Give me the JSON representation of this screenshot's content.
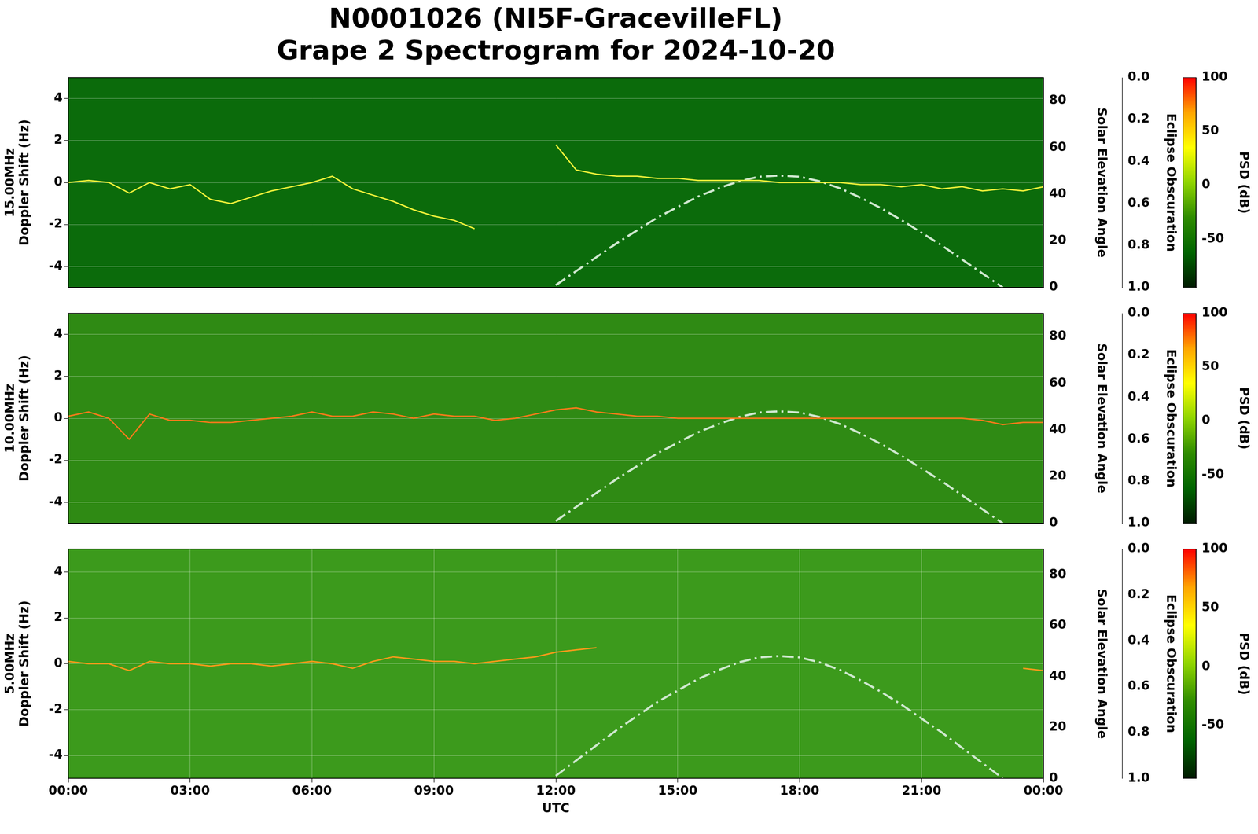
{
  "title": "N0001026 (NI5F-GracevilleFL)\nGrape 2 Spectrogram for 2024-10-20",
  "chart_data": [
    {
      "type": "line",
      "ylabel": "15.00MHz\nDoppler Shift (Hz)",
      "y2label": "Solar Elevation Angle",
      "y3label": "Eclipse Obscuration",
      "xlim": [
        0,
        24
      ],
      "ylim": [
        -5,
        5
      ],
      "yticks": [
        -4,
        -2,
        0,
        2,
        4
      ],
      "y2lim": [
        0,
        90
      ],
      "y2ticks": [
        0,
        20,
        40,
        60,
        80
      ],
      "y3lim": [
        1,
        0
      ],
      "y3ticks": [
        {
          "value": 0,
          "label": "0.0"
        },
        0.2,
        0.4,
        0.6,
        0.8,
        {
          "value": 1,
          "label": "1.0"
        }
      ],
      "grid": true,
      "colorbar": {
        "label": "PSD (dB)",
        "range": [
          -95,
          100
        ],
        "ticks": [
          -50,
          0,
          50,
          100
        ],
        "colors": [
          "#001a00",
          "#006400",
          "#2e8b00",
          "#8fd400",
          "#ffff00",
          "#ffa500",
          "#ff0000"
        ]
      },
      "x": [
        0,
        0.5,
        1,
        1.5,
        2,
        2.5,
        3,
        3.5,
        4,
        4.5,
        5,
        5.5,
        6,
        6.5,
        7,
        7.5,
        8,
        8.5,
        9,
        9.5,
        10,
        10.5,
        11,
        11.5,
        12,
        12.5,
        13,
        13.5,
        14,
        14.5,
        15,
        15.5,
        16,
        16.5,
        17,
        17.5,
        18,
        18.5,
        19,
        19.5,
        20,
        20.5,
        21,
        21.5,
        22,
        22.5,
        23,
        23.5,
        24
      ],
      "series": [
        {
          "color": "#f2f23a",
          "values": [
            0,
            0.1,
            0,
            -0.5,
            0,
            -0.3,
            -0.1,
            -0.8,
            -1,
            -0.7,
            -0.4,
            -0.2,
            0,
            0.3,
            -0.3,
            -0.6,
            -0.9,
            -1.3,
            -1.6,
            -1.8,
            -2.2,
            null,
            null,
            null,
            1.8,
            0.6,
            0.4,
            0.3,
            0.3,
            0.2,
            0.2,
            0.1,
            0.1,
            0.1,
            0.1,
            0,
            0,
            0,
            0,
            -0.1,
            -0.1,
            -0.2,
            -0.1,
            -0.3,
            -0.2,
            -0.4,
            -0.3,
            -0.4,
            -0.2
          ]
        },
        {
          "color": "#cfe8cf",
          "line_style": "dashdot",
          "axis": "y2",
          "values": [
            null,
            null,
            null,
            null,
            null,
            null,
            null,
            null,
            null,
            null,
            null,
            null,
            null,
            null,
            null,
            null,
            null,
            null,
            null,
            null,
            null,
            null,
            null,
            null,
            1,
            7,
            13,
            19,
            24.5,
            30,
            34.5,
            39,
            42.5,
            45.5,
            47.5,
            48,
            47.5,
            45.5,
            42.5,
            38.5,
            34,
            29,
            23.5,
            18,
            12,
            6,
            0,
            null,
            null
          ]
        }
      ]
    },
    {
      "type": "line",
      "ylabel": "10.00MHz\nDoppler Shift (Hz)",
      "y2label": "Solar Elevation Angle",
      "y3label": "Eclipse Obscuration",
      "xlim": [
        0,
        24
      ],
      "ylim": [
        -5,
        5
      ],
      "yticks": [
        -4,
        -2,
        0,
        2,
        4
      ],
      "y2lim": [
        0,
        90
      ],
      "y2ticks": [
        0,
        20,
        40,
        60,
        80
      ],
      "y3lim": [
        1,
        0
      ],
      "y3ticks": [
        {
          "value": 0,
          "label": "0.0"
        },
        0.2,
        0.4,
        0.6,
        0.8,
        {
          "value": 1,
          "label": "1.0"
        }
      ],
      "grid": true,
      "colorbar": {
        "label": "PSD (dB)",
        "range": [
          -95,
          100
        ],
        "ticks": [
          -50,
          0,
          50,
          100
        ],
        "colors": [
          "#001a00",
          "#006400",
          "#2e8b00",
          "#8fd400",
          "#ffff00",
          "#ffa500",
          "#ff0000"
        ]
      },
      "x": [
        0,
        0.5,
        1,
        1.5,
        2,
        2.5,
        3,
        3.5,
        4,
        4.5,
        5,
        5.5,
        6,
        6.5,
        7,
        7.5,
        8,
        8.5,
        9,
        9.5,
        10,
        10.5,
        11,
        11.5,
        12,
        12.5,
        13,
        13.5,
        14,
        14.5,
        15,
        15.5,
        16,
        16.5,
        17,
        17.5,
        18,
        18.5,
        19,
        19.5,
        20,
        20.5,
        21,
        21.5,
        22,
        22.5,
        23,
        23.5,
        24
      ],
      "series": [
        {
          "color": "#ff7a1a",
          "values": [
            0.1,
            0.3,
            0,
            -1.0,
            0.2,
            -0.1,
            -0.1,
            -0.2,
            -0.2,
            -0.1,
            0,
            0.1,
            0.3,
            0.1,
            0.1,
            0.3,
            0.2,
            0,
            0.2,
            0.1,
            0.1,
            -0.1,
            0,
            0.2,
            0.4,
            0.5,
            0.3,
            0.2,
            0.1,
            0.1,
            0,
            0,
            0,
            0,
            0,
            0,
            0,
            0,
            0,
            0,
            0,
            0,
            0,
            0,
            0,
            -0.1,
            -0.3,
            -0.2,
            -0.2
          ]
        },
        {
          "color": "#cfe8cf",
          "line_style": "dashdot",
          "axis": "y2",
          "values": [
            null,
            null,
            null,
            null,
            null,
            null,
            null,
            null,
            null,
            null,
            null,
            null,
            null,
            null,
            null,
            null,
            null,
            null,
            null,
            null,
            null,
            null,
            null,
            null,
            1,
            7,
            13,
            19,
            24.5,
            30,
            34.5,
            39,
            42.5,
            45.5,
            47.5,
            48,
            47.5,
            45.5,
            42.5,
            38.5,
            34,
            29,
            23.5,
            18,
            12,
            6,
            0,
            null,
            null
          ]
        }
      ]
    },
    {
      "type": "line",
      "ylabel": "5.00MHz\nDoppler Shift (Hz)",
      "y2label": "Solar Elevation Angle",
      "y3label": "Eclipse Obscuration",
      "xlabel": "UTC",
      "xlim": [
        0,
        24
      ],
      "xticks": [
        {
          "value": 0,
          "label": "00:00"
        },
        {
          "value": 3,
          "label": "03:00"
        },
        {
          "value": 6,
          "label": "06:00"
        },
        {
          "value": 9,
          "label": "09:00"
        },
        {
          "value": 12,
          "label": "12:00"
        },
        {
          "value": 15,
          "label": "15:00"
        },
        {
          "value": 18,
          "label": "18:00"
        },
        {
          "value": 21,
          "label": "21:00"
        },
        {
          "value": 24,
          "label": "00:00"
        }
      ],
      "ylim": [
        -5,
        5
      ],
      "yticks": [
        -4,
        -2,
        0,
        2,
        4
      ],
      "y2lim": [
        0,
        90
      ],
      "y2ticks": [
        0,
        20,
        40,
        60,
        80
      ],
      "y3lim": [
        1,
        0
      ],
      "y3ticks": [
        {
          "value": 0,
          "label": "0.0"
        },
        0.2,
        0.4,
        0.6,
        0.8,
        {
          "value": 1,
          "label": "1.0"
        }
      ],
      "grid": true,
      "colorbar": {
        "label": "PSD (dB)",
        "range": [
          -95,
          100
        ],
        "ticks": [
          -50,
          0,
          50,
          100
        ],
        "colors": [
          "#001a00",
          "#006400",
          "#2e8b00",
          "#8fd400",
          "#ffff00",
          "#ffa500",
          "#ff0000"
        ]
      },
      "x": [
        0,
        0.5,
        1,
        1.5,
        2,
        2.5,
        3,
        3.5,
        4,
        4.5,
        5,
        5.5,
        6,
        6.5,
        7,
        7.5,
        8,
        8.5,
        9,
        9.5,
        10,
        10.5,
        11,
        11.5,
        12,
        12.5,
        13,
        13.5,
        14,
        14.5,
        15,
        15.5,
        16,
        16.5,
        17,
        17.5,
        18,
        18.5,
        19,
        19.5,
        20,
        20.5,
        21,
        21.5,
        22,
        22.5,
        23,
        23.5,
        24
      ],
      "series": [
        {
          "color": "#ff9a1a",
          "values": [
            0.1,
            0,
            0,
            -0.3,
            0.1,
            0,
            0,
            -0.1,
            0,
            0,
            -0.1,
            0,
            0.1,
            0,
            -0.2,
            0.1,
            0.3,
            0.2,
            0.1,
            0.1,
            0,
            0.1,
            0.2,
            0.3,
            0.5,
            0.6,
            0.7,
            null,
            null,
            null,
            null,
            null,
            null,
            null,
            null,
            null,
            null,
            null,
            null,
            null,
            null,
            null,
            null,
            null,
            null,
            null,
            null,
            -0.2,
            -0.3
          ]
        },
        {
          "color": "#cfe8cf",
          "line_style": "dashdot",
          "axis": "y2",
          "values": [
            null,
            null,
            null,
            null,
            null,
            null,
            null,
            null,
            null,
            null,
            null,
            null,
            null,
            null,
            null,
            null,
            null,
            null,
            null,
            null,
            null,
            null,
            null,
            null,
            1,
            7,
            13,
            19,
            24.5,
            30,
            34.5,
            39,
            42.5,
            45.5,
            47.5,
            48,
            47.5,
            45.5,
            42.5,
            38.5,
            34,
            29,
            23.5,
            18,
            12,
            6,
            0,
            null,
            null
          ]
        }
      ]
    }
  ]
}
